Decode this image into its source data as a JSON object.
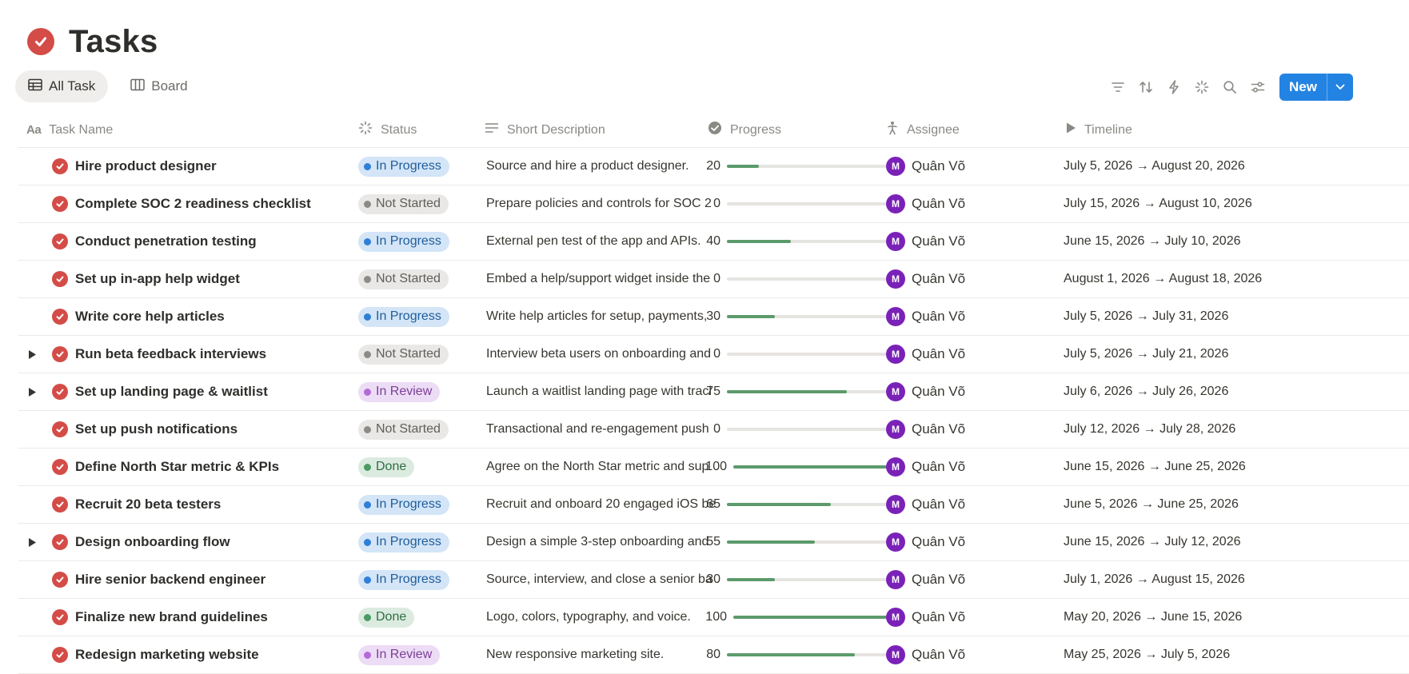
{
  "page": {
    "title": "Tasks",
    "icon": "check-circle-icon",
    "accent": "#d44c47"
  },
  "views": [
    {
      "label": "All Task",
      "icon": "table-icon",
      "active": true
    },
    {
      "label": "Board",
      "icon": "board-icon",
      "active": false
    }
  ],
  "toolbar": {
    "icons": [
      "filter-icon",
      "sort-icon",
      "automation-icon",
      "loading-icon",
      "search-icon",
      "settings-icon"
    ],
    "new_label": "New",
    "new_color": "#2383e2"
  },
  "columns": {
    "name": "Task Name",
    "status": "Status",
    "description": "Short Description",
    "progress": "Progress",
    "assignee": "Assignee",
    "timeline": "Timeline"
  },
  "status_styles": {
    "In Progress": {
      "bg": "#d3e5f7",
      "dot": "#2f7fd6",
      "text": "#1f5d9a"
    },
    "Not Started": {
      "bg": "#e9e8e6",
      "dot": "#8c8b87",
      "text": "#5f5e5a"
    },
    "In Review": {
      "bg": "#eddcf5",
      "dot": "#b46bd6",
      "text": "#7b3f98"
    },
    "Done": {
      "bg": "#dcebe0",
      "dot": "#4b9a63",
      "text": "#2f6e44"
    }
  },
  "tasks": [
    {
      "name": "Hire product designer",
      "status": "In Progress",
      "description": "Source and hire a product designer.",
      "progress": 20,
      "assignee": {
        "initial": "M",
        "name": "Quân Võ"
      },
      "timeline": "July 5, 2026 → August 20, 2026",
      "has_children": false
    },
    {
      "name": "Complete SOC 2 readiness checklist",
      "status": "Not Started",
      "description": "Prepare policies and controls for SOC 2",
      "progress": 0,
      "assignee": {
        "initial": "M",
        "name": "Quân Võ"
      },
      "timeline": "July 15, 2026 → August 10, 2026",
      "has_children": false
    },
    {
      "name": "Conduct penetration testing",
      "status": "In Progress",
      "description": "External pen test of the app and APIs.",
      "progress": 40,
      "assignee": {
        "initial": "M",
        "name": "Quân Võ"
      },
      "timeline": "June 15, 2026 → July 10, 2026",
      "has_children": false
    },
    {
      "name": "Set up in-app help widget",
      "status": "Not Started",
      "description": "Embed a help/support widget inside the",
      "progress": 0,
      "assignee": {
        "initial": "M",
        "name": "Quân Võ"
      },
      "timeline": "August 1, 2026 → August 18, 2026",
      "has_children": false
    },
    {
      "name": "Write core help articles",
      "status": "In Progress",
      "description": "Write help articles for setup, payments,",
      "progress": 30,
      "assignee": {
        "initial": "M",
        "name": "Quân Võ"
      },
      "timeline": "July 5, 2026 → July 31, 2026",
      "has_children": false
    },
    {
      "name": "Run beta feedback interviews",
      "status": "Not Started",
      "description": "Interview beta users on onboarding and",
      "progress": 0,
      "assignee": {
        "initial": "M",
        "name": "Quân Võ"
      },
      "timeline": "July 5, 2026 → July 21, 2026",
      "has_children": true
    },
    {
      "name": "Set up landing page & waitlist",
      "status": "In Review",
      "description": "Launch a waitlist landing page with tracl",
      "progress": 75,
      "assignee": {
        "initial": "M",
        "name": "Quân Võ"
      },
      "timeline": "July 6, 2026 → July 26, 2026",
      "has_children": true
    },
    {
      "name": "Set up push notifications",
      "status": "Not Started",
      "description": "Transactional and re-engagement push",
      "progress": 0,
      "assignee": {
        "initial": "M",
        "name": "Quân Võ"
      },
      "timeline": "July 12, 2026 → July 28, 2026",
      "has_children": false
    },
    {
      "name": "Define North Star metric & KPIs",
      "status": "Done",
      "description": "Agree on the North Star metric and sup",
      "progress": 100,
      "assignee": {
        "initial": "M",
        "name": "Quân Võ"
      },
      "timeline": "June 15, 2026 → June 25, 2026",
      "has_children": false
    },
    {
      "name": "Recruit 20 beta testers",
      "status": "In Progress",
      "description": "Recruit and onboard 20 engaged iOS be",
      "progress": 65,
      "assignee": {
        "initial": "M",
        "name": "Quân Võ"
      },
      "timeline": "June 5, 2026 → June 25, 2026",
      "has_children": false
    },
    {
      "name": "Design onboarding flow",
      "status": "In Progress",
      "description": "Design a simple 3-step onboarding and",
      "progress": 55,
      "assignee": {
        "initial": "M",
        "name": "Quân Võ"
      },
      "timeline": "June 15, 2026 → July 12, 2026",
      "has_children": true
    },
    {
      "name": "Hire senior backend engineer",
      "status": "In Progress",
      "description": "Source, interview, and close a senior ba",
      "progress": 30,
      "assignee": {
        "initial": "M",
        "name": "Quân Võ"
      },
      "timeline": "July 1, 2026 → August 15, 2026",
      "has_children": false
    },
    {
      "name": "Finalize new brand guidelines",
      "status": "Done",
      "description": "Logo, colors, typography, and voice.",
      "progress": 100,
      "assignee": {
        "initial": "M",
        "name": "Quân Võ"
      },
      "timeline": "May 20, 2026 → June 15, 2026",
      "has_children": false
    },
    {
      "name": "Redesign marketing website",
      "status": "In Review",
      "description": "New responsive marketing site.",
      "progress": 80,
      "assignee": {
        "initial": "M",
        "name": "Quân Võ"
      },
      "timeline": "May 25, 2026 → July 5, 2026",
      "has_children": false
    }
  ]
}
